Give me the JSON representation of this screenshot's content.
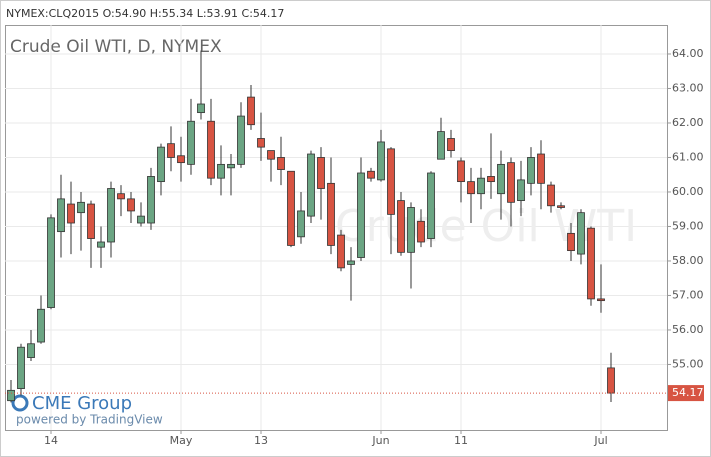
{
  "chart_data": {
    "type": "candlestick",
    "header": "NYMEX:CLQ2015 O:54.90 H:55.34 L:53.91 C:54.17",
    "title": "Crude Oil WTI, D, NYMEX",
    "watermark": "Crude Oil WTI",
    "logo": "CME Group",
    "credit": "powered by TradingView",
    "categories": [
      null,
      null,
      null,
      null,
      "14",
      null,
      null,
      null,
      null,
      null,
      null,
      null,
      null,
      null,
      null,
      null,
      null,
      "May",
      null,
      null,
      null,
      null,
      null,
      null,
      null,
      "13",
      null,
      null,
      null,
      null,
      null,
      null,
      null,
      null,
      null,
      null,
      null,
      "Jun",
      null,
      null,
      null,
      null,
      null,
      null,
      null,
      "11",
      null,
      null,
      null,
      null,
      null,
      null,
      null,
      null,
      null,
      null,
      null,
      null,
      null,
      "Jul",
      null
    ],
    "open": [
      53.95,
      54.3,
      55.2,
      55.65,
      56.65,
      58.85,
      59.65,
      59.4,
      59.65,
      58.4,
      58.55,
      59.95,
      59.8,
      59.1,
      59.1,
      60.3,
      61.4,
      61.05,
      60.8,
      62.3,
      62.05,
      60.4,
      60.7,
      60.8,
      62.75,
      61.55,
      61.2,
      61.0,
      60.6,
      58.7,
      59.3,
      61.0,
      60.25,
      58.75,
      57.9,
      58.1,
      60.6,
      60.35,
      61.25,
      59.75,
      58.25,
      59.15,
      58.65,
      60.95,
      61.55,
      60.9,
      60.3,
      59.95,
      60.45,
      59.95,
      60.85,
      59.75,
      60.25,
      61.1,
      60.2,
      59.6,
      58.8,
      58.2,
      58.95,
      56.9,
      54.9
    ],
    "high": [
      54.55,
      55.6,
      56.0,
      57.0,
      59.35,
      60.5,
      60.3,
      60.0,
      59.75,
      59.0,
      60.3,
      60.2,
      60.0,
      59.7,
      60.7,
      61.4,
      61.9,
      61.6,
      62.7,
      64.1,
      62.7,
      61.35,
      61.1,
      62.6,
      63.1,
      62.3,
      61.2,
      61.6,
      60.6,
      60.0,
      61.2,
      61.3,
      61.0,
      58.9,
      58.4,
      61.0,
      60.7,
      61.8,
      61.3,
      60.0,
      59.7,
      59.5,
      60.6,
      62.15,
      61.8,
      61.0,
      60.7,
      60.7,
      61.7,
      61.2,
      61.0,
      60.9,
      61.3,
      61.5,
      60.3,
      59.7,
      59.1,
      59.5,
      59.0,
      57.9,
      55.34
    ],
    "low": [
      53.9,
      54.1,
      55.1,
      55.6,
      56.6,
      58.1,
      58.2,
      58.3,
      57.8,
      57.8,
      58.1,
      59.3,
      59.1,
      59.0,
      58.9,
      59.9,
      60.6,
      60.3,
      60.5,
      62.1,
      60.2,
      59.9,
      59.9,
      60.7,
      61.8,
      60.9,
      60.3,
      60.2,
      58.4,
      58.5,
      59.1,
      59.2,
      58.2,
      57.7,
      56.85,
      58.0,
      60.3,
      60.3,
      58.2,
      58.15,
      57.2,
      58.4,
      58.4,
      60.95,
      61.0,
      59.7,
      59.1,
      59.5,
      59.8,
      59.2,
      59.0,
      59.3,
      59.9,
      59.5,
      59.4,
      59.5,
      58.0,
      57.9,
      56.7,
      56.5,
      53.91
    ],
    "close": [
      54.25,
      55.5,
      55.6,
      56.6,
      59.25,
      59.8,
      59.1,
      59.7,
      58.65,
      58.55,
      60.1,
      59.8,
      59.45,
      59.3,
      60.45,
      61.3,
      61.0,
      60.85,
      62.05,
      62.55,
      60.4,
      60.8,
      60.8,
      62.2,
      61.95,
      61.3,
      60.95,
      60.65,
      58.45,
      59.45,
      61.1,
      60.1,
      58.45,
      57.8,
      58.0,
      60.55,
      60.4,
      61.45,
      59.35,
      58.25,
      59.55,
      58.55,
      60.55,
      61.75,
      61.2,
      60.3,
      59.95,
      60.4,
      60.3,
      60.8,
      59.7,
      60.35,
      61.0,
      60.25,
      59.6,
      59.55,
      58.3,
      59.4,
      56.9,
      56.85,
      54.17
    ],
    "up_color": "#6ba583",
    "down_color": "#d75442",
    "ylim": [
      53.1,
      64.84
    ],
    "yticks": [
      {
        "value": 55,
        "label": "55.00"
      },
      {
        "value": 56,
        "label": "56.00"
      },
      {
        "value": 57,
        "label": "57.00"
      },
      {
        "value": 58,
        "label": "58.00"
      },
      {
        "value": 59,
        "label": "59.00"
      },
      {
        "value": 60,
        "label": "60.00"
      },
      {
        "value": 61,
        "label": "61.00"
      },
      {
        "value": 62,
        "label": "62.00"
      },
      {
        "value": 63,
        "label": "63.00"
      },
      {
        "value": 64,
        "label": "64.00"
      }
    ],
    "grid": true
  }
}
